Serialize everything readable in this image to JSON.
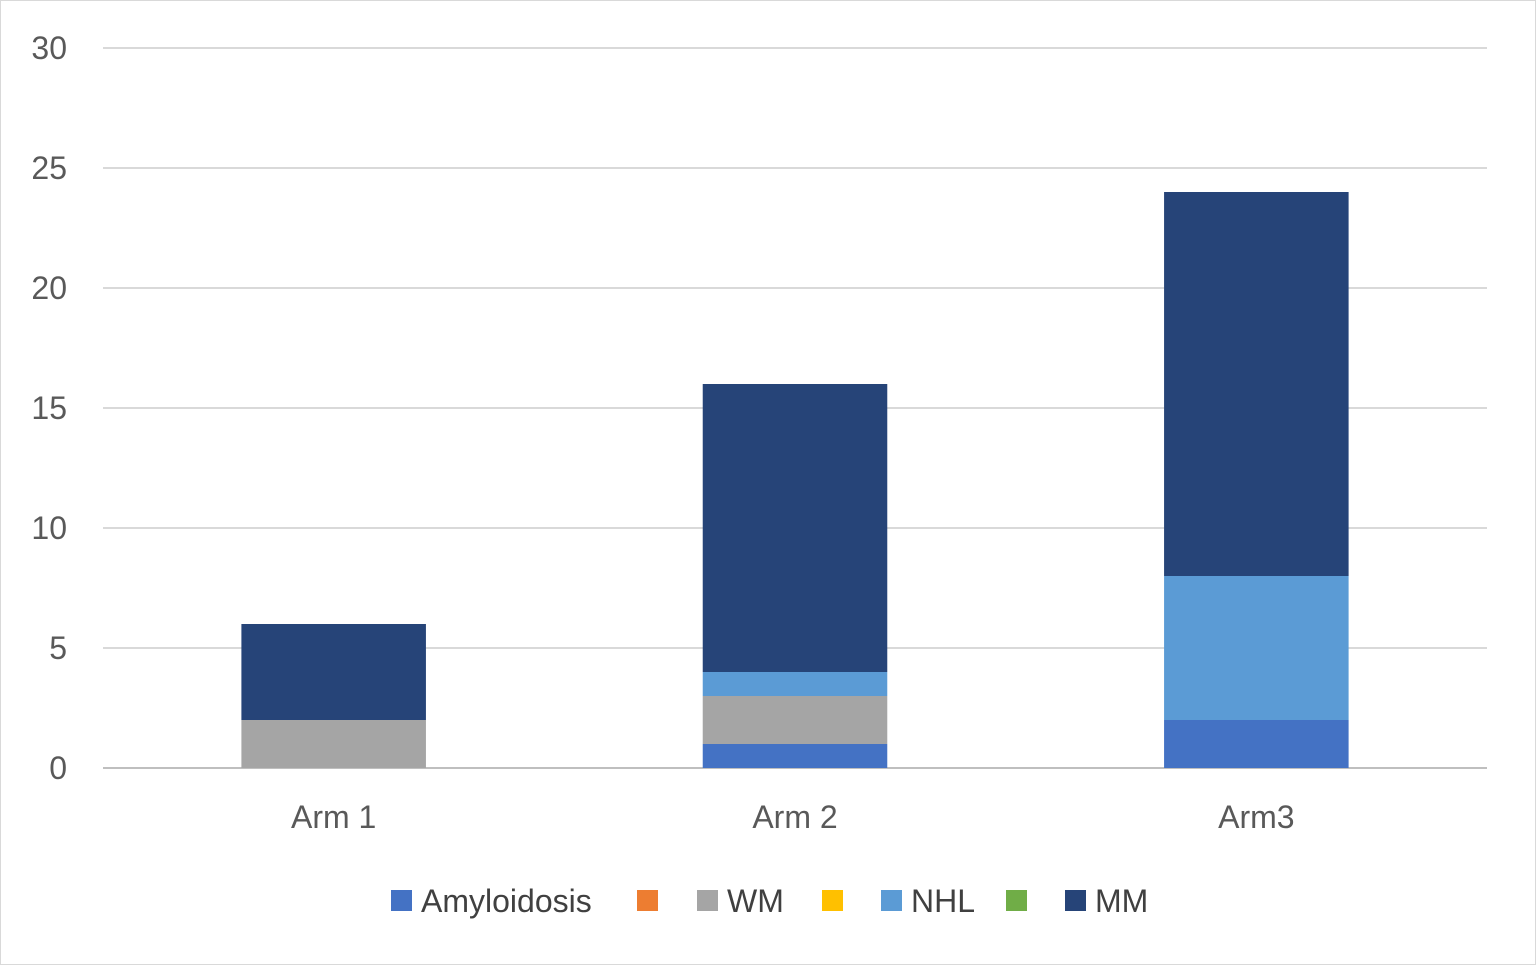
{
  "chart_data": {
    "type": "bar",
    "stacked": true,
    "categories": [
      "Arm 1",
      "Arm 2",
      "Arm3"
    ],
    "series": [
      {
        "name": "Amyloidosis",
        "color": "#4472C4",
        "values": [
          0,
          1,
          2
        ]
      },
      {
        "name": "",
        "color": "#ED7D31",
        "values": [
          0,
          0,
          0
        ]
      },
      {
        "name": "WM",
        "color": "#A5A5A5",
        "values": [
          2,
          2,
          0
        ]
      },
      {
        "name": "",
        "color": "#FFC000",
        "values": [
          0,
          0,
          0
        ]
      },
      {
        "name": "NHL",
        "color": "#5B9BD5",
        "values": [
          0,
          1,
          6
        ]
      },
      {
        "name": "",
        "color": "#70AD47",
        "values": [
          0,
          0,
          0
        ]
      },
      {
        "name": "MM",
        "color": "#264478",
        "values": [
          4,
          12,
          16
        ]
      }
    ],
    "ylim": [
      0,
      30
    ],
    "yticks": [
      "0",
      "5",
      "10",
      "15",
      "20",
      "25",
      "30"
    ],
    "grid": true,
    "legend": "bottom",
    "title": "",
    "xlabel": "",
    "ylabel": ""
  }
}
